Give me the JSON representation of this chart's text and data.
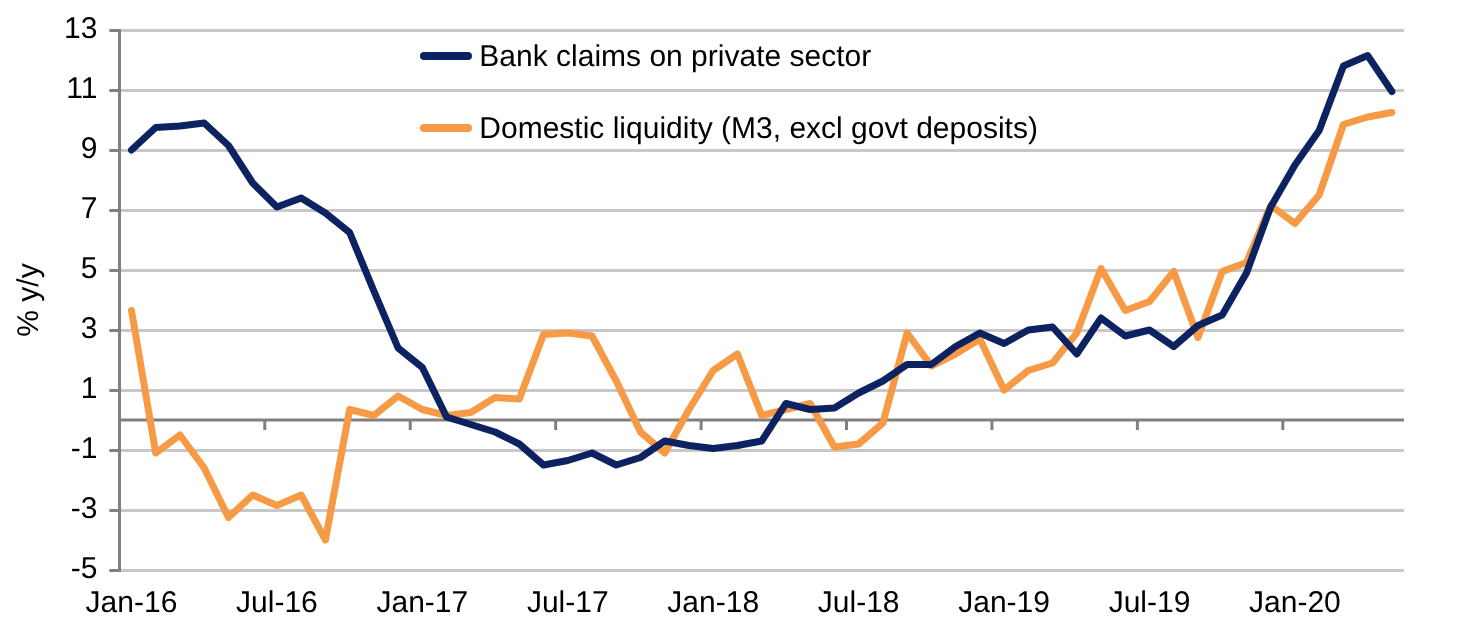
{
  "chart_data": {
    "type": "line",
    "ylabel": "% y/y",
    "categories": [
      "Jan-16",
      null,
      null,
      null,
      null,
      null,
      "Jul-16",
      null,
      null,
      null,
      null,
      null,
      "Jan-17",
      null,
      null,
      null,
      null,
      null,
      "Jul-17",
      null,
      null,
      null,
      null,
      null,
      "Jan-18",
      null,
      null,
      null,
      null,
      null,
      "Jul-18",
      null,
      null,
      null,
      null,
      null,
      "Jan-19",
      null,
      null,
      null,
      null,
      null,
      "Jul-19",
      null,
      null,
      null,
      null,
      null,
      "Jan-20",
      null,
      null,
      null,
      null
    ],
    "series": [
      {
        "name": "Bank claims on private sector",
        "color": "#0d2260",
        "values": [
          9.0,
          9.75,
          9.8,
          9.9,
          9.15,
          7.9,
          7.1,
          7.4,
          6.9,
          6.25,
          4.3,
          2.4,
          1.75,
          0.1,
          -0.15,
          -0.4,
          -0.8,
          -1.5,
          -1.35,
          -1.1,
          -1.5,
          -1.25,
          -0.7,
          -0.85,
          -0.95,
          -0.85,
          -0.7,
          0.55,
          0.35,
          0.4,
          0.9,
          1.3,
          1.85,
          1.85,
          2.45,
          2.9,
          2.55,
          3.0,
          3.1,
          2.2,
          3.4,
          2.8,
          3.0,
          2.45,
          3.15,
          3.5,
          4.9,
          7.1,
          8.5,
          9.65,
          11.8,
          12.15,
          10.95
        ]
      },
      {
        "name": "Domestic liquidity (M3, excl govt deposits)",
        "color": "#f79a45",
        "values": [
          3.65,
          -1.1,
          -0.5,
          -1.6,
          -3.25,
          -2.5,
          -2.85,
          -2.5,
          -4.0,
          0.35,
          0.15,
          0.8,
          0.35,
          0.15,
          0.25,
          0.75,
          0.7,
          2.85,
          2.9,
          2.8,
          1.3,
          -0.4,
          -1.1,
          0.35,
          1.65,
          2.2,
          0.15,
          0.35,
          0.55,
          -0.9,
          -0.8,
          -0.1,
          2.9,
          1.8,
          2.2,
          2.7,
          1.0,
          1.65,
          1.9,
          2.9,
          5.05,
          3.65,
          3.95,
          4.95,
          2.75,
          4.95,
          5.25,
          7.15,
          6.55,
          7.5,
          9.85,
          10.1,
          10.25
        ]
      }
    ],
    "ylim": [
      -5,
      13
    ],
    "yticks": [
      -5,
      -3,
      -1,
      1,
      3,
      5,
      7,
      9,
      11,
      13
    ],
    "grid": "y",
    "legend": "top",
    "marker": "none",
    "line_style": "solid",
    "ref_lines": [
      {
        "axis": "y",
        "value": 0,
        "color": "#808080"
      }
    ]
  }
}
